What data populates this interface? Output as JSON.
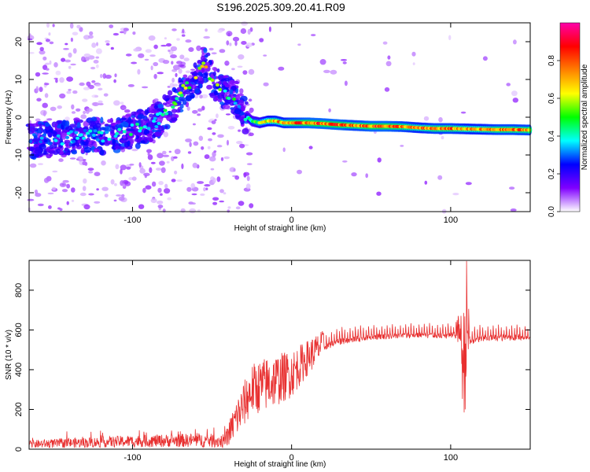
{
  "title": "S196.2025.309.20.41.R09",
  "chart_data": [
    {
      "type": "heatmap",
      "name": "spectrogram",
      "xlabel": "Height of straight line (km)",
      "ylabel": "Frequency (Hz)",
      "xlim": [
        -165,
        150
      ],
      "ylim": [
        -25,
        25
      ],
      "xticks": [
        -100,
        0,
        100
      ],
      "xtick_labels": [
        "-100",
        "0",
        "100"
      ],
      "yticks": [
        -20,
        -10,
        0,
        10,
        20
      ],
      "ytick_labels": [
        "-20",
        "-10",
        "0",
        "10",
        "20"
      ],
      "colorbar": {
        "label": "Normalized spectral amplitude",
        "range": [
          0,
          1
        ],
        "ticks": [
          0.0,
          0.2,
          0.4,
          0.6,
          0.8
        ],
        "tick_labels": [
          "0.0",
          "0.2",
          "0.4",
          "0.6",
          "0.8"
        ],
        "colors": [
          "#ffffff",
          "#8000ff",
          "#0000ff",
          "#00ffff",
          "#00ff00",
          "#ffff00",
          "#ff8000",
          "#ff0000",
          "#ff00aa"
        ]
      },
      "ridge": {
        "x": [
          -165,
          -150,
          -135,
          -120,
          -105,
          -95,
          -85,
          -75,
          -68,
          -60,
          -55,
          -48,
          -42,
          -35,
          -30,
          -25,
          -20,
          -15,
          -10,
          -5,
          0,
          10,
          20,
          30,
          40,
          50,
          60,
          70,
          80,
          90,
          100,
          110,
          120,
          130,
          140,
          150
        ],
        "freq": [
          -6,
          -6,
          -5,
          -5,
          -4,
          -3,
          -1,
          3,
          7,
          10,
          14,
          9,
          7,
          5,
          1,
          -1,
          -1.5,
          -1,
          -1,
          -1.5,
          -1.5,
          -1.5,
          -1.7,
          -2,
          -2.2,
          -2.4,
          -2.4,
          -2.5,
          -2.8,
          -3,
          -3,
          -3.1,
          -3.2,
          -3.3,
          -3.3,
          -3.4
        ],
        "amplitude": [
          0.3,
          0.35,
          0.35,
          0.4,
          0.4,
          0.45,
          0.4,
          0.5,
          0.6,
          0.6,
          0.7,
          0.55,
          0.5,
          0.45,
          0.35,
          0.5,
          0.6,
          0.7,
          0.75,
          0.75,
          0.8,
          0.85,
          0.85,
          0.85,
          0.8,
          0.85,
          0.85,
          0.8,
          0.75,
          0.8,
          0.8,
          0.75,
          0.75,
          0.8,
          0.8,
          0.8
        ]
      }
    },
    {
      "type": "line",
      "name": "snr",
      "xlabel": "Height of straight line (km)",
      "ylabel": "SNR (10 * v/v)",
      "color": "#e83030",
      "xlim": [
        -165,
        150
      ],
      "ylim": [
        0,
        950
      ],
      "xticks": [
        -100,
        0,
        100
      ],
      "xtick_labels": [
        "-100",
        "0",
        "100"
      ],
      "yticks": [
        0,
        200,
        400,
        600,
        800
      ],
      "ytick_labels": [
        "0",
        "200",
        "400",
        "600",
        "800"
      ],
      "envelope": {
        "x": [
          -165,
          -100,
          -60,
          -42,
          -35,
          -25,
          -15,
          0,
          10,
          20,
          30,
          50,
          80,
          100,
          106,
          108,
          110,
          112,
          120,
          150
        ],
        "mean": [
          25,
          40,
          45,
          40,
          150,
          300,
          330,
          380,
          460,
          530,
          560,
          580,
          590,
          585,
          600,
          400,
          620,
          560,
          575,
          580
        ],
        "spread": [
          20,
          30,
          35,
          35,
          100,
          130,
          140,
          120,
          90,
          70,
          70,
          60,
          60,
          60,
          80,
          300,
          350,
          80,
          70,
          60
        ]
      }
    }
  ]
}
